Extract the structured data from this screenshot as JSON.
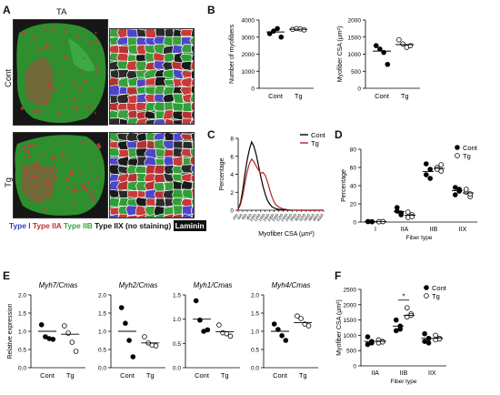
{
  "panels": {
    "A": "A",
    "B": "B",
    "C": "C",
    "D": "D",
    "E": "E",
    "F": "F"
  },
  "panelA": {
    "muscle": "TA",
    "row_labels": [
      "Cont",
      "Tg"
    ],
    "legend": {
      "type1": "Type I",
      "type2a": "Type IIA",
      "type2b": "Type IIB",
      "type2x": "Type IIX (no staining)",
      "laminin": "Laminin"
    },
    "colors": {
      "type1": "#2b3fd0",
      "type2a": "#c62d2d",
      "type2b": "#2fa83a",
      "type2x": "#111111",
      "laminin": "#ffffff"
    }
  },
  "chart_data": [
    {
      "id": "B-left",
      "type": "scatter",
      "ylabel": "Number of myofibers",
      "categories": [
        "Cont",
        "Tg"
      ],
      "ylim": [
        0,
        4000
      ],
      "yticks": [
        0,
        1000,
        2000,
        3000,
        4000
      ],
      "series": [
        {
          "name": "Cont",
          "values": [
            3200,
            3350,
            3500,
            3000
          ],
          "mean": 3300
        },
        {
          "name": "Tg",
          "values": [
            3450,
            3500,
            3480,
            3420
          ],
          "mean": 3460
        }
      ]
    },
    {
      "id": "B-right",
      "type": "scatter",
      "ylabel": "Myofiber CSA (μm²)",
      "categories": [
        "Cont",
        "Tg"
      ],
      "ylim": [
        0,
        2000
      ],
      "yticks": [
        0,
        500,
        1000,
        1500,
        2000
      ],
      "series": [
        {
          "name": "Cont",
          "values": [
            1250,
            1150,
            1050,
            700
          ],
          "mean": 1090
        },
        {
          "name": "Tg",
          "values": [
            1420,
            1300,
            1200,
            1250
          ],
          "mean": 1280
        }
      ]
    },
    {
      "id": "C",
      "type": "line",
      "ylabel": "Percentage",
      "xlabel": "Myofiber CSA (μm²)",
      "legend": [
        "Cont",
        "Tg"
      ],
      "legend_position": "top-right",
      "xticks": [
        "200",
        "400",
        "600",
        "800",
        "1000",
        "1200",
        "1400",
        "1600",
        "1800",
        "2000",
        "2200",
        "2400",
        "2600",
        "2800",
        "3000",
        "3200",
        "3400",
        "3600",
        "3800",
        "4000"
      ],
      "ylim": [
        0,
        8
      ],
      "yticks": [
        0,
        2,
        4,
        6,
        8
      ],
      "series": [
        {
          "name": "Cont",
          "color": "#000000",
          "x": [
            200,
            300,
            400,
            500,
            600,
            700,
            800,
            900,
            1000,
            1100,
            1200,
            1300,
            1400,
            1500,
            1600,
            1700,
            1800,
            1900,
            2000,
            2200,
            2400,
            2600,
            3000,
            4000
          ],
          "values": [
            0.1,
            0.8,
            2.2,
            4.0,
            5.6,
            6.8,
            7.6,
            7.1,
            6.2,
            5.0,
            3.8,
            2.7,
            1.8,
            1.1,
            0.7,
            0.4,
            0.25,
            0.15,
            0.1,
            0.05,
            0.02,
            0,
            0,
            0
          ]
        },
        {
          "name": "Tg",
          "color": "#b22222",
          "x": [
            200,
            300,
            400,
            500,
            600,
            700,
            800,
            900,
            1000,
            1100,
            1200,
            1300,
            1400,
            1500,
            1600,
            1700,
            1800,
            1900,
            2000,
            2200,
            2400,
            2600,
            3000,
            4000
          ],
          "values": [
            0.1,
            0.6,
            1.6,
            3.0,
            4.3,
            5.2,
            5.7,
            5.4,
            4.9,
            4.5,
            4.1,
            4.2,
            3.9,
            3.2,
            2.3,
            1.5,
            0.9,
            0.55,
            0.35,
            0.15,
            0.07,
            0.02,
            0,
            0
          ]
        }
      ]
    },
    {
      "id": "D",
      "type": "scatter",
      "ylabel": "Percentage",
      "xlabel": "Fiber type",
      "categories": [
        "I",
        "IIA",
        "IIB",
        "IIX"
      ],
      "legend": [
        "Cont",
        "Tg"
      ],
      "legend_position": "top-right",
      "ylim": [
        0,
        80
      ],
      "yticks": [
        0,
        20,
        40,
        60,
        80
      ],
      "series": [
        {
          "name": "Cont",
          "values": [
            [
              0.5,
              0.3,
              0.6,
              0.4
            ],
            [
              16,
              10,
              12,
              8
            ],
            [
              64,
              58,
              52,
              48
            ],
            [
              38,
              36,
              30,
              34
            ]
          ],
          "means": [
            0.5,
            11.5,
            55.5,
            34.5
          ]
        },
        {
          "name": "Tg",
          "values": [
            [
              0.4,
              0.6,
              0.3,
              0.5
            ],
            [
              11,
              8,
              5,
              6
            ],
            [
              60,
              63,
              58,
              56
            ],
            [
              33,
              28,
              36,
              31
            ]
          ],
          "means": [
            0.5,
            7.5,
            59,
            32
          ]
        }
      ]
    },
    {
      "id": "E1",
      "type": "scatter",
      "title": "Myh7/Cmas",
      "ylabel": "Relative expression",
      "categories": [
        "Cont",
        "Tg"
      ],
      "ylim": [
        0,
        2.0
      ],
      "yticks": [
        0.0,
        0.5,
        1.0,
        1.5,
        2.0
      ],
      "series": [
        {
          "name": "Cont",
          "values": [
            1.18,
            0.85,
            0.8,
            0.78
          ],
          "mean": 1.0
        },
        {
          "name": "Tg",
          "values": [
            1.15,
            0.95,
            0.7,
            0.45
          ],
          "mean": 0.92
        }
      ]
    },
    {
      "id": "E2",
      "type": "scatter",
      "title": "Myh2/Cmas",
      "categories": [
        "Cont",
        "Tg"
      ],
      "ylim": [
        0,
        2.0
      ],
      "yticks": [
        0.0,
        0.5,
        1.0,
        1.5,
        2.0
      ],
      "series": [
        {
          "name": "Cont",
          "values": [
            1.65,
            1.22,
            0.75,
            0.3
          ],
          "mean": 1.0
        },
        {
          "name": "Tg",
          "values": [
            0.85,
            0.68,
            0.62,
            0.6
          ],
          "mean": 0.68
        }
      ]
    },
    {
      "id": "E3",
      "type": "scatter",
      "title": "Myh1/Cmas",
      "categories": [
        "Cont",
        "Tg"
      ],
      "ylim": [
        0,
        1.5
      ],
      "yticks": [
        0.0,
        0.5,
        1.0,
        1.5
      ],
      "series": [
        {
          "name": "Cont",
          "values": [
            1.38,
            0.98,
            0.75,
            0.78
          ],
          "mean": 1.0
        },
        {
          "name": "Tg",
          "values": [
            0.88,
            0.72,
            0.7,
            0.65
          ],
          "mean": 0.74
        }
      ]
    },
    {
      "id": "E4",
      "type": "scatter",
      "title": "Myh4/Cmas",
      "categories": [
        "Cont",
        "Tg"
      ],
      "ylim": [
        0,
        2.0
      ],
      "yticks": [
        0.0,
        0.5,
        1.0,
        1.5,
        2.0
      ],
      "series": [
        {
          "name": "Cont",
          "values": [
            1.2,
            1.05,
            0.88,
            0.75
          ],
          "mean": 1.0
        },
        {
          "name": "Tg",
          "values": [
            1.42,
            1.35,
            1.2,
            1.15
          ],
          "mean": 1.24
        }
      ]
    },
    {
      "id": "F",
      "type": "scatter",
      "ylabel": "Myofiber CSA (μm²)",
      "xlabel": "Fiber type",
      "categories": [
        "IIA",
        "IIB",
        "IIX"
      ],
      "legend": [
        "Cont",
        "Tg"
      ],
      "legend_position": "top-right",
      "annotation": "*",
      "ylim": [
        0,
        2500
      ],
      "yticks": [
        0,
        500,
        1000,
        1500,
        2000,
        2500
      ],
      "series": [
        {
          "name": "Cont",
          "values": [
            [
              950,
              800,
              700,
              750
            ],
            [
              1500,
              1300,
              1150,
              1200
            ],
            [
              1050,
              900,
              800,
              750
            ]
          ],
          "means": [
            800,
            1300,
            900
          ]
        },
        {
          "name": "Tg",
          "values": [
            [
              850,
              800,
              750,
              780
            ],
            [
              1900,
              1700,
              1600,
              1650
            ],
            [
              1000,
              900,
              850,
              880
            ]
          ],
          "means": [
            800,
            1650,
            900
          ]
        }
      ]
    }
  ]
}
